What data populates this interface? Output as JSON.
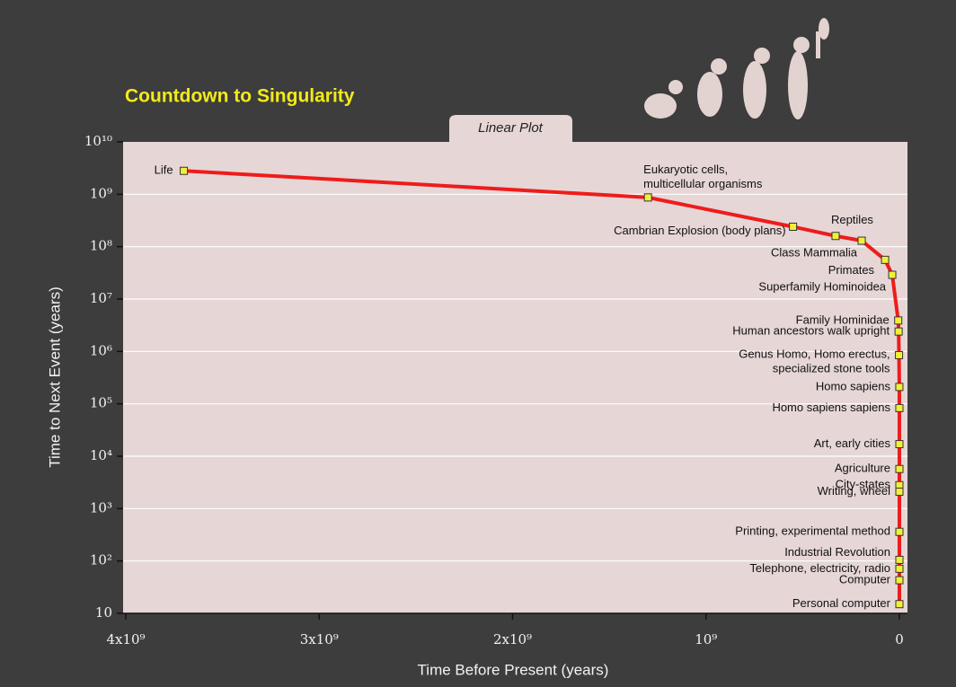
{
  "chart_data": {
    "type": "line",
    "title": "Countdown to Singularity",
    "subtitle": "Linear Plot",
    "x_label": "Time Before Present (years)",
    "y_label": "Time to Next Event (years)",
    "y_scale": "log",
    "grid": true,
    "xlim": [
      4000000000.0,
      0
    ],
    "ylim": [
      10,
      10000000000.0
    ],
    "xticks": [
      {
        "value": 4000000000.0,
        "label": "4x10⁹"
      },
      {
        "value": 3000000000.0,
        "label": "3x10⁹"
      },
      {
        "value": 2000000000.0,
        "label": "2x10⁹"
      },
      {
        "value": 1000000000.0,
        "label": "10⁹"
      },
      0
    ],
    "yticks": [
      {
        "value": 10000000000.0,
        "label": "10¹⁰"
      },
      {
        "value": 1000000000.0,
        "label": "10⁹"
      },
      {
        "value": 100000000.0,
        "label": "10⁸"
      },
      {
        "value": 10000000.0,
        "label": "10⁷"
      },
      {
        "value": 1000000.0,
        "label": "10⁶"
      },
      {
        "value": 100000.0,
        "label": "10⁵"
      },
      {
        "value": 10000.0,
        "label": "10⁴"
      },
      {
        "value": 1000.0,
        "label": "10³"
      },
      {
        "value": 100.0,
        "label": "10²"
      },
      10
    ],
    "series": [
      {
        "color": "#ee1c1c",
        "marker_color": "#f2ef3a",
        "labels": [
          "Life",
          [
            "Eukaryotic cells,",
            "multicellular organisms"
          ],
          "Cambrian Explosion (body plans)",
          "Reptiles",
          "Class Mammalia",
          "Primates",
          "Superfamily Hominoidea",
          "Family Hominidae",
          "Human ancestors walk upright",
          [
            "Genus Homo, Homo erectus,",
            "specialized stone tools"
          ],
          "Homo sapiens",
          "Homo sapiens sapiens",
          "Art, early cities",
          "Agriculture",
          "City-states",
          "Writing, wheel",
          "Printing, experimental method",
          "Industrial Revolution",
          "Telephone,  electricity, radio",
          "Computer",
          "Personal computer"
        ],
        "x": [
          3700000000.0,
          1300000000.0,
          550000000.0,
          330000000.0,
          195000000.0,
          74000000.0,
          37000000.0,
          6000000.0,
          4000000.0,
          2000000.0,
          200000.0,
          100000.0,
          20000.0,
          10000.0,
          5000,
          4000,
          500,
          200,
          100,
          60,
          30
        ],
        "values": [
          2800000000.0,
          870000000.0,
          240000000.0,
          160000000.0,
          130000000.0,
          56000000.0,
          29000000.0,
          3900000.0,
          2400000.0,
          850000.0,
          210000.0,
          83000.0,
          17000.0,
          5700,
          2800,
          2100,
          360,
          105,
          71,
          43,
          15
        ]
      }
    ]
  }
}
